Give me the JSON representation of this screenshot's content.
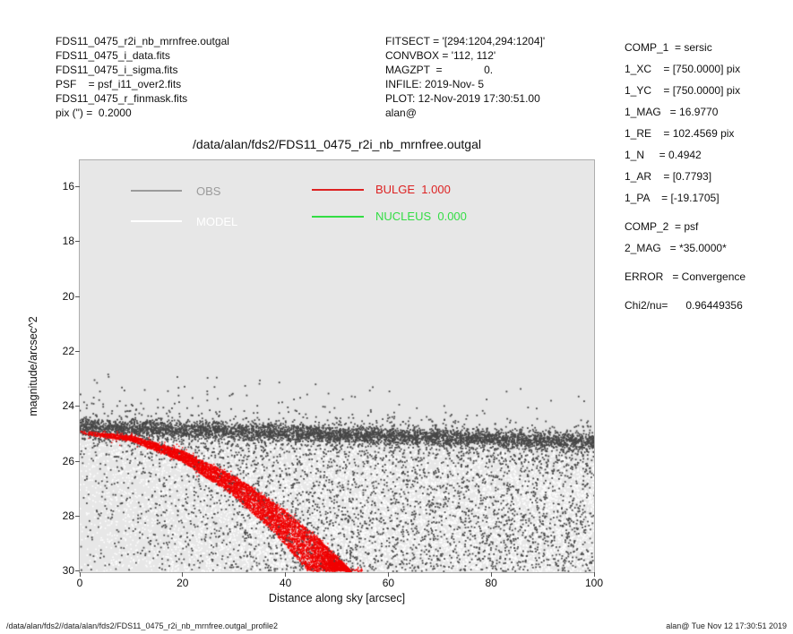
{
  "header": {
    "left_block": {
      "lines": [
        "FDS11_0475_r2i_nb_mrnfree.outgal",
        "FDS11_0475_i_data.fits",
        "FDS11_0475_i_sigma.fits",
        "PSF    = psf_i11_over2.fits",
        "FDS11_0475_r_finmask.fits",
        "pix (\") =  0.2000"
      ]
    },
    "center_block": {
      "lines": [
        "FITSECT = '[294:1204,294:1204]'",
        "CONVBOX = '112, 112'",
        "MAGZPT  =              0.",
        "INFILE: 2019-Nov- 5",
        "PLOT: 12-Nov-2019 17:30:51.00",
        "alan@"
      ]
    }
  },
  "right_panel": {
    "lines": [
      {
        "text": "COMP_1  = sersic"
      },
      {
        "text": "1_XC    = [750.0000] pix"
      },
      {
        "text": "1_YC    = [750.0000] pix"
      },
      {
        "text": "1_MAG   = 16.9770"
      },
      {
        "text": "1_RE    = 102.4569 pix"
      },
      {
        "text": "1_N     = 0.4942"
      },
      {
        "text": "1_AR    = [0.7793]"
      },
      {
        "text": "1_PA    = [-19.1705]"
      },
      {
        "text": "COMP_2  = psf"
      },
      {
        "text": "2_MAG   = *35.0000*"
      },
      {
        "text": "ERROR   = Convergence"
      },
      {
        "text": "Chi2/nu=      0.96449356"
      }
    ]
  },
  "footer": {
    "left": "/data/alan/fds2//data/alan/fds2/FDS11_0475_r2i_nb_mrnfree.outgal_profile2",
    "right": "alan@  Tue Nov 12 17:30:51 2019"
  },
  "chart_data": {
    "type": "scatter",
    "title": "/data/alan/fds2/FDS11_0475_r2i_nb_mrnfree.outgal",
    "xlabel": "Distance along sky [arcsec]",
    "ylabel": "magnitude/arcsec^2",
    "xlim": [
      0,
      100
    ],
    "ylim_top_to_bottom": [
      15.05,
      30.05
    ],
    "y_axis_inverted": true,
    "x_ticks": [
      0,
      20,
      40,
      60,
      80,
      100
    ],
    "y_ticks": [
      16,
      18,
      20,
      22,
      24,
      26,
      28,
      30
    ],
    "plot_background": "#e7e7e7",
    "legend": {
      "items": [
        {
          "label": "OBS",
          "color": "#9b9b9b"
        },
        {
          "label": "MODEL",
          "color": "#ffffff"
        },
        {
          "label": "BULGE  1.000",
          "color": "#dd2222"
        },
        {
          "label": "NUCLEUS  0.000",
          "color": "#33dd44"
        }
      ]
    },
    "series": [
      {
        "name": "OBS",
        "style": "scatter",
        "color": "#474747",
        "point_size": 1.8,
        "trend_mag_vs_arcsec": [
          [
            0,
            24.78
          ],
          [
            20,
            24.88
          ],
          [
            40,
            24.99
          ],
          [
            60,
            25.1
          ],
          [
            80,
            25.21
          ],
          [
            100,
            25.32
          ]
        ],
        "band_sigma_mag": 0.17,
        "description": "dense dark band of observed surface-brightness points with diffuse scatter reaching mag 30"
      },
      {
        "name": "MODEL",
        "style": "scatter",
        "color": "#ffffff",
        "point_size": 1.6,
        "description": "white residual/model noise cloud filling region below OBS band down to mag 30, density grows with radius and depth"
      },
      {
        "name": "BULGE",
        "style": "scatter-band",
        "color": "#f10000",
        "point_size": 1.4,
        "weight": 1.0,
        "upper_edge_mag_vs_arcsec": [
          [
            0,
            24.9
          ],
          [
            10,
            25.08
          ],
          [
            20,
            25.63
          ],
          [
            30,
            26.53
          ],
          [
            40,
            27.8
          ],
          [
            47,
            28.91
          ],
          [
            53,
            30.05
          ]
        ],
        "lower_edge_mag_vs_arcsec": [
          [
            0,
            25.02
          ],
          [
            10,
            25.27
          ],
          [
            20,
            26.03
          ],
          [
            30,
            27.28
          ],
          [
            38,
            28.65
          ],
          [
            44.5,
            30.05
          ]
        ]
      },
      {
        "name": "NUCLEUS",
        "style": "none",
        "color": "#33dd44",
        "weight": 0.0,
        "description": "flux 0.000 - no visible curve in plot"
      }
    ],
    "render": {
      "seed": 1234,
      "white_count": 14000,
      "obs_count": 4200,
      "obs_fuzz_count": 700,
      "obs_above_count": 130,
      "dark_lower_count": 3800,
      "red_count": 7500
    }
  }
}
